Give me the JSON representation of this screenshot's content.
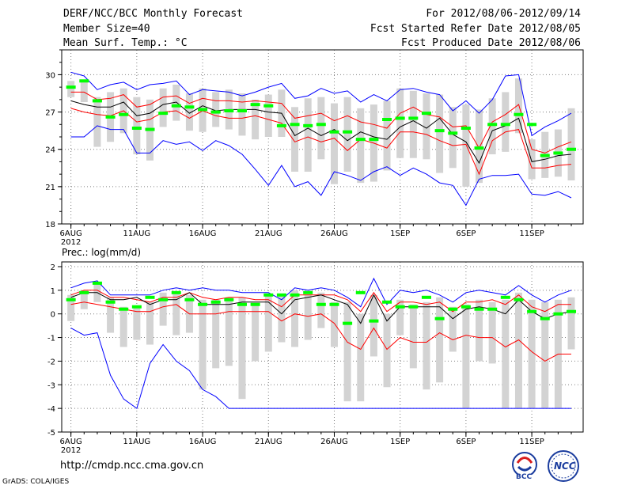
{
  "header": {
    "title": "DERF/NCC/BCC Monthly Forecast",
    "member_size": "Member Size=40",
    "variable": "Mean Surf. Temp.: °C",
    "period": "For 2012/08/06-2012/09/14",
    "fcst_started": "Fcst Started Refer Date 2012/08/05",
    "fcst_produced": "Fcst Produced Date 2012/08/06"
  },
  "footer": {
    "url": "http://cmdp.ncc.cma.gov.cn",
    "credit": "GrADS: COLA/IGES",
    "logo_left": "BCC",
    "logo_right": "NCC"
  },
  "colors": {
    "envelope": "#0000ff",
    "spread": "#ff0000",
    "mean": "#000000",
    "member_bar": "#d3d3d3",
    "observed": "#00ff00",
    "grid": "#808080"
  },
  "chart_data": [
    {
      "type": "line",
      "title": "Mean Surf. Temp.: °C",
      "ylabel": "°C",
      "ylim": [
        18,
        32
      ],
      "yticks": [
        18,
        21,
        24,
        27,
        30
      ],
      "xlim": [
        -0.7,
        38.9
      ],
      "xticks": [
        {
          "day": 0,
          "label": "6AUG",
          "sublabel": "2012"
        },
        {
          "day": 5,
          "label": "11AUG"
        },
        {
          "day": 10,
          "label": "16AUG"
        },
        {
          "day": 15,
          "label": "21AUG"
        },
        {
          "day": 20,
          "label": "26AUG"
        },
        {
          "day": 25,
          "label": "1SEP"
        },
        {
          "day": 30,
          "label": "6SEP"
        },
        {
          "day": 35,
          "label": "11SEP"
        }
      ],
      "grid": true,
      "days": [
        0,
        1,
        2,
        3,
        4,
        5,
        6,
        7,
        8,
        9,
        10,
        11,
        12,
        13,
        14,
        15,
        16,
        17,
        18,
        19,
        20,
        21,
        22,
        23,
        24,
        25,
        26,
        27,
        28,
        29,
        30,
        31,
        32,
        33,
        34,
        35,
        36,
        37,
        38
      ],
      "series": [
        {
          "name": "max",
          "color": "#0000ff",
          "values": [
            30.2,
            29.9,
            28.8,
            29.2,
            29.4,
            28.8,
            29.2,
            29.3,
            29.5,
            28.4,
            28.8,
            28.7,
            28.6,
            28.3,
            28.6,
            29.0,
            29.3,
            28.1,
            28.3,
            28.9,
            28.5,
            28.7,
            27.8,
            28.4,
            27.9,
            28.8,
            28.9,
            28.6,
            28.4,
            27.1,
            27.9,
            26.9,
            28.0,
            29.9,
            30.0,
            25.1,
            25.8,
            26.3,
            26.9
          ]
        },
        {
          "name": "spread_high",
          "color": "#ff0000",
          "values": [
            28.6,
            28.6,
            28.0,
            28.1,
            28.4,
            27.4,
            27.6,
            28.2,
            28.3,
            27.7,
            28.1,
            27.9,
            27.9,
            27.8,
            27.9,
            27.8,
            27.7,
            26.5,
            26.7,
            26.9,
            26.3,
            26.7,
            26.2,
            26.0,
            25.7,
            26.9,
            27.4,
            26.8,
            26.6,
            25.8,
            25.9,
            24.1,
            26.2,
            26.8,
            27.6,
            24.0,
            23.7,
            24.2,
            24.6
          ]
        },
        {
          "name": "ensemble_mean",
          "color": "#000000",
          "values": [
            27.9,
            27.6,
            27.4,
            27.4,
            27.8,
            26.7,
            26.9,
            27.6,
            27.8,
            26.9,
            27.5,
            27.1,
            27.2,
            27.2,
            27.2,
            27.0,
            26.9,
            25.1,
            25.7,
            25.1,
            25.6,
            24.7,
            25.4,
            25.0,
            24.8,
            25.8,
            26.3,
            25.7,
            26.5,
            25.2,
            24.6,
            22.9,
            25.5,
            25.9,
            26.5,
            23.0,
            23.2,
            23.5,
            23.6
          ]
        },
        {
          "name": "spread_low",
          "color": "#ff0000",
          "values": [
            27.3,
            27.0,
            26.8,
            26.7,
            27.1,
            26.2,
            26.4,
            27.0,
            27.1,
            26.5,
            27.1,
            26.7,
            26.5,
            26.5,
            26.7,
            26.4,
            26.1,
            24.6,
            25.0,
            24.6,
            24.9,
            23.9,
            24.8,
            24.5,
            24.1,
            25.4,
            25.4,
            25.2,
            24.7,
            24.3,
            24.4,
            22.0,
            24.7,
            25.4,
            25.6,
            22.5,
            22.5,
            22.7,
            22.8
          ]
        },
        {
          "name": "min",
          "color": "#0000ff",
          "values": [
            25.0,
            25.0,
            25.9,
            25.6,
            25.6,
            23.7,
            23.7,
            24.7,
            24.4,
            24.6,
            23.9,
            24.7,
            24.3,
            23.6,
            22.4,
            21.1,
            22.7,
            21.0,
            21.4,
            20.3,
            22.2,
            21.9,
            21.5,
            22.2,
            22.6,
            21.9,
            22.5,
            22.0,
            21.3,
            21.1,
            19.5,
            21.6,
            21.9,
            21.9,
            22.0,
            20.4,
            20.3,
            20.6,
            20.1
          ]
        }
      ],
      "member_range": {
        "min": [
          28.2,
          27.8,
          24.2,
          24.6,
          25.3,
          23.6,
          23.1,
          25.8,
          26.3,
          25.5,
          25.4,
          25.8,
          25.6,
          25.1,
          24.8,
          25.0,
          25.0,
          22.2,
          22.2,
          23.2,
          21.2,
          22.2,
          21.3,
          21.4,
          22.3,
          23.3,
          23.3,
          23.2,
          22.1,
          22.5,
          21.0,
          21.3,
          23.6,
          23.8,
          25.3,
          21.6,
          21.7,
          21.8,
          21.5
        ],
        "max": [
          29.5,
          29.6,
          28.2,
          28.6,
          28.9,
          28.2,
          28.0,
          28.9,
          29.2,
          28.5,
          28.9,
          28.6,
          28.8,
          28.5,
          28.0,
          28.4,
          28.8,
          27.4,
          28.1,
          28.2,
          27.7,
          28.2,
          27.3,
          27.6,
          27.9,
          28.9,
          28.7,
          28.5,
          28.4,
          27.4,
          27.6,
          27.2,
          28.1,
          28.6,
          29.7,
          24.8,
          25.4,
          25.6,
          27.3
        ]
      },
      "observed": [
        29.0,
        29.5,
        27.9,
        26.6,
        26.8,
        25.7,
        25.6,
        26.9,
        27.5,
        27.4,
        27.2,
        27.0,
        27.1,
        27.1,
        27.6,
        27.5,
        25.9,
        26.0,
        25.9,
        26.0,
        25.4,
        25.4,
        24.8,
        24.8,
        26.4,
        26.5,
        26.5,
        26.9,
        25.5,
        25.3,
        25.7,
        24.1,
        26.0,
        26.0,
        26.8,
        26.0,
        23.5,
        23.7,
        24.0
      ]
    },
    {
      "type": "line",
      "title": "Prec.: log(mm/d)",
      "ylabel": "log(mm/d)",
      "ylim": [
        -5,
        2.2
      ],
      "yticks": [
        -5,
        -4,
        -3,
        -2,
        -1,
        0,
        1,
        2
      ],
      "xlim": [
        -0.7,
        38.9
      ],
      "xticks": [
        {
          "day": 0,
          "label": "6AUG",
          "sublabel": "2012"
        },
        {
          "day": 5,
          "label": "11AUG"
        },
        {
          "day": 10,
          "label": "16AUG"
        },
        {
          "day": 15,
          "label": "21AUG"
        },
        {
          "day": 20,
          "label": "26AUG"
        },
        {
          "day": 25,
          "label": "1SEP"
        },
        {
          "day": 30,
          "label": "6SEP"
        },
        {
          "day": 35,
          "label": "11SEP"
        }
      ],
      "grid": true,
      "days": [
        0,
        1,
        2,
        3,
        4,
        5,
        6,
        7,
        8,
        9,
        10,
        11,
        12,
        13,
        14,
        15,
        16,
        17,
        18,
        19,
        20,
        21,
        22,
        23,
        24,
        25,
        26,
        27,
        28,
        29,
        30,
        31,
        32,
        33,
        34,
        35,
        36,
        37,
        38
      ],
      "series": [
        {
          "name": "max",
          "color": "#0000ff",
          "values": [
            1.1,
            1.3,
            1.4,
            0.8,
            0.8,
            0.8,
            0.8,
            1.0,
            1.1,
            1.0,
            1.1,
            1.0,
            1.0,
            0.9,
            0.9,
            0.9,
            0.6,
            1.1,
            1.0,
            1.1,
            1.0,
            0.7,
            0.3,
            1.5,
            0.4,
            1.0,
            0.9,
            1.0,
            0.8,
            0.5,
            0.9,
            1.0,
            0.9,
            0.8,
            1.2,
            0.8,
            0.5,
            0.8,
            1.0
          ]
        },
        {
          "name": "spread_high",
          "color": "#ff0000",
          "values": [
            0.8,
            1.0,
            1.0,
            0.7,
            0.7,
            0.6,
            0.5,
            0.7,
            0.7,
            0.9,
            0.7,
            0.6,
            0.7,
            0.7,
            0.6,
            0.6,
            0.3,
            0.8,
            0.8,
            0.8,
            0.8,
            0.6,
            0.1,
            0.9,
            0.1,
            0.5,
            0.5,
            0.4,
            0.5,
            0.1,
            0.5,
            0.5,
            0.6,
            0.4,
            0.8,
            0.3,
            0.1,
            0.4,
            0.4
          ]
        },
        {
          "name": "ensemble_mean",
          "color": "#000000",
          "values": [
            0.7,
            0.9,
            0.9,
            0.6,
            0.6,
            0.7,
            0.4,
            0.6,
            0.6,
            0.9,
            0.4,
            0.4,
            0.4,
            0.5,
            0.5,
            0.5,
            0.0,
            0.6,
            0.7,
            0.8,
            0.6,
            0.4,
            -0.4,
            0.8,
            -0.3,
            0.3,
            0.3,
            0.3,
            0.3,
            -0.2,
            0.2,
            0.3,
            0.2,
            0.0,
            0.6,
            0.1,
            -0.2,
            0.0,
            0.1
          ]
        },
        {
          "name": "spread_low",
          "color": "#ff0000",
          "values": [
            0.4,
            0.5,
            0.4,
            0.3,
            0.2,
            0.1,
            0.1,
            0.3,
            0.4,
            0.0,
            0.0,
            0.0,
            0.1,
            0.1,
            0.1,
            0.1,
            -0.3,
            0.0,
            -0.1,
            0.0,
            -0.4,
            -1.2,
            -1.5,
            -0.6,
            -1.5,
            -1.0,
            -1.2,
            -1.2,
            -0.8,
            -1.1,
            -0.9,
            -1.0,
            -1.0,
            -1.4,
            -1.1,
            -1.6,
            -2.0,
            -1.7,
            -1.7
          ]
        },
        {
          "name": "min",
          "color": "#0000ff",
          "values": [
            -0.6,
            -0.9,
            -0.8,
            -2.6,
            -3.6,
            -4.0,
            -2.1,
            -1.3,
            -2.0,
            -2.4,
            -3.2,
            -3.5,
            -4.0,
            -4.0,
            -4.0,
            -4.0,
            -4.0,
            -4.0,
            -4.0,
            -4.0,
            -4.0,
            -4.0,
            -4.0,
            -4.0,
            -4.0,
            -4.0,
            -4.0,
            -4.0,
            -4.0,
            -4.0,
            -4.0,
            -4.0,
            -4.0,
            -4.0,
            -4.0,
            -4.0,
            -4.0,
            -4.0,
            -4.0
          ]
        }
      ],
      "member_range": {
        "min": [
          -0.3,
          0.2,
          0.5,
          -0.8,
          -1.4,
          -1.1,
          -1.3,
          -0.5,
          -0.9,
          -0.8,
          -3.2,
          -2.3,
          -2.2,
          -3.6,
          -2.0,
          -1.6,
          -1.2,
          -1.4,
          -1.1,
          -0.6,
          -1.4,
          -3.7,
          -3.7,
          -1.8,
          -3.1,
          -0.9,
          -2.3,
          -3.2,
          -2.9,
          -1.6,
          -4.0,
          -2.0,
          -2.1,
          -4.0,
          -4.0,
          -4.0,
          -4.0,
          -4.0,
          -1.5
        ],
        "max": [
          0.8,
          1.0,
          1.3,
          0.7,
          0.3,
          0.3,
          0.5,
          0.9,
          0.9,
          0.8,
          0.6,
          0.6,
          0.7,
          0.7,
          0.4,
          0.8,
          0.8,
          1.0,
          0.8,
          0.9,
          0.5,
          0.5,
          0.0,
          0.8,
          0.0,
          0.6,
          0.4,
          0.5,
          0.7,
          0.3,
          0.4,
          0.6,
          0.5,
          0.6,
          0.9,
          0.6,
          0.5,
          0.6,
          0.7
        ]
      },
      "observed": [
        0.6,
        0.9,
        1.3,
        0.5,
        0.2,
        0.3,
        0.7,
        0.6,
        0.9,
        0.6,
        0.4,
        0.5,
        0.6,
        0.4,
        0.4,
        0.8,
        0.8,
        0.8,
        0.9,
        0.4,
        0.4,
        -0.4,
        0.9,
        -0.3,
        0.5,
        0.3,
        0.3,
        0.7,
        -0.2,
        0.2,
        0.3,
        0.2,
        0.2,
        0.7,
        0.6,
        0.1,
        -0.2,
        0.0,
        0.1
      ]
    }
  ],
  "panel_subtitle": "Prec.: log(mm/d)"
}
